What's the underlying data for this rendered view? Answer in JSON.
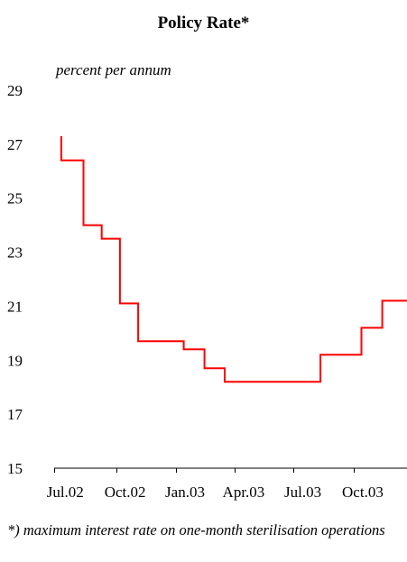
{
  "chart_data": {
    "type": "line",
    "title": "Policy Rate*",
    "ylabel": "percent per annum",
    "xlabel": "",
    "ylim": [
      15,
      29
    ],
    "yticks": [
      15,
      17,
      19,
      21,
      23,
      25,
      27,
      29
    ],
    "xlim": [
      "2002-06-28",
      "2003-12-22"
    ],
    "xticks": [
      {
        "label": "Jul.02",
        "date": "2002-07-15"
      },
      {
        "label": "Oct.02",
        "date": "2002-10-15"
      },
      {
        "label": "Jan.03",
        "date": "2003-01-15"
      },
      {
        "label": "Apr.03",
        "date": "2003-04-15"
      },
      {
        "label": "Jul.03",
        "date": "2003-07-15"
      },
      {
        "label": "Oct.03",
        "date": "2003-10-15"
      }
    ],
    "step": "post",
    "line_color": "#ff0000",
    "series": [
      {
        "points": [
          {
            "x": "2002-07-09",
            "y": 27.3
          },
          {
            "x": "2002-07-09",
            "y": 26.4
          },
          {
            "x": "2002-08-12",
            "y": 24.0
          },
          {
            "x": "2002-09-09",
            "y": 23.5
          },
          {
            "x": "2002-10-07",
            "y": 21.1
          },
          {
            "x": "2002-11-04",
            "y": 19.7
          },
          {
            "x": "2003-01-13",
            "y": 19.4
          },
          {
            "x": "2003-02-14",
            "y": 18.7
          },
          {
            "x": "2003-03-17",
            "y": 18.2
          },
          {
            "x": "2003-05-15",
            "y": 18.2
          },
          {
            "x": "2003-08-11",
            "y": 19.2
          },
          {
            "x": "2003-10-13",
            "y": 20.2
          },
          {
            "x": "2003-11-14",
            "y": 21.2
          },
          {
            "x": "2003-12-22",
            "y": 21.2
          }
        ]
      }
    ]
  },
  "footnote": "*) maximum interest rate on one-month sterilisation operations"
}
